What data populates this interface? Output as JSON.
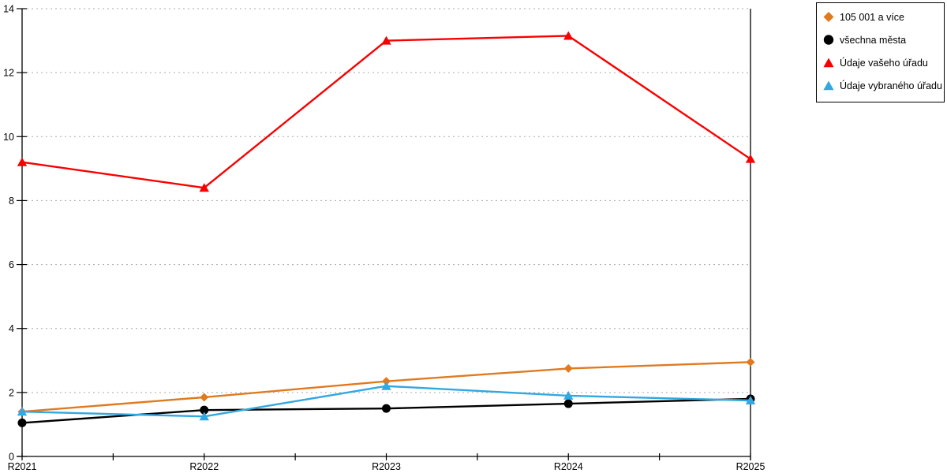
{
  "chart_data": {
    "type": "line",
    "categories": [
      "R2021",
      "R2022",
      "R2023",
      "R2024",
      "R2025"
    ],
    "series": [
      {
        "name": "105 001 a více",
        "color": "#E07A1F",
        "marker": "diamond",
        "values": [
          1.4,
          1.85,
          2.35,
          2.75,
          2.95
        ]
      },
      {
        "name": "všechna města",
        "color": "#000000",
        "marker": "circle",
        "values": [
          1.05,
          1.45,
          1.5,
          1.65,
          1.8
        ]
      },
      {
        "name": "Údaje vašeho úřadu",
        "color": "#F90000",
        "marker": "triangle",
        "values": [
          9.2,
          8.4,
          13.0,
          13.15,
          9.3
        ]
      },
      {
        "name": "Údaje vybraného úřadu",
        "color": "#31A8E0",
        "marker": "triangle",
        "values": [
          1.4,
          1.25,
          2.2,
          1.9,
          1.75
        ]
      }
    ],
    "title": "",
    "xlabel": "",
    "ylabel": "",
    "ylim": [
      0,
      14
    ],
    "yticks": [
      0,
      2,
      4,
      6,
      8,
      10,
      12,
      14
    ],
    "grid": "horizontal-dashed",
    "gridline_color": "#AAAAAA",
    "axis_color": "#000000",
    "legend_position": "top-right",
    "x_minor_ticks_between_categories": true
  }
}
